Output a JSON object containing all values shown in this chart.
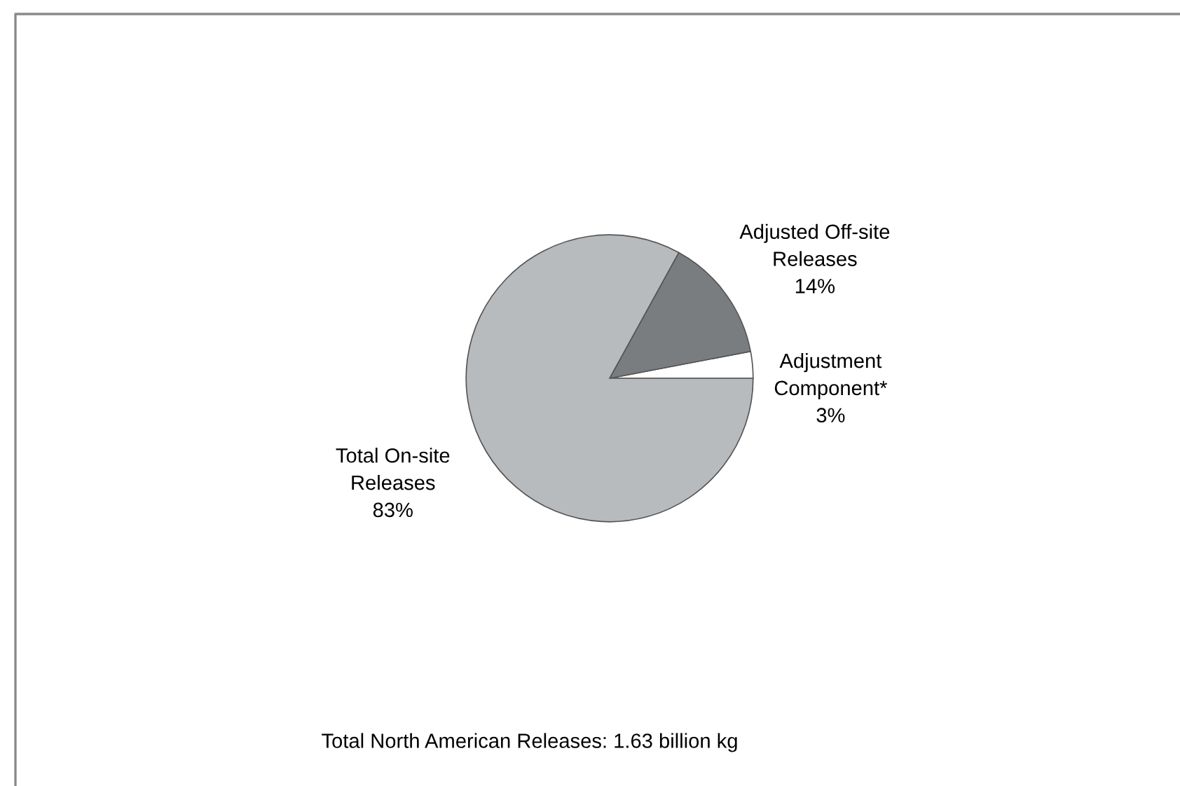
{
  "chart_data": {
    "type": "pie",
    "categories": [
      "Adjustment Component*",
      "Adjusted Off-site Releases",
      "Total On-site Releases"
    ],
    "values": [
      3,
      14,
      83
    ],
    "colors": [
      "#ffffff",
      "#7a7d80",
      "#b8bbbd"
    ],
    "value_labels": [
      "3%",
      "14%",
      "83%"
    ],
    "annotations": [
      "Total North American Releases: 1.63 billion kg"
    ]
  }
}
